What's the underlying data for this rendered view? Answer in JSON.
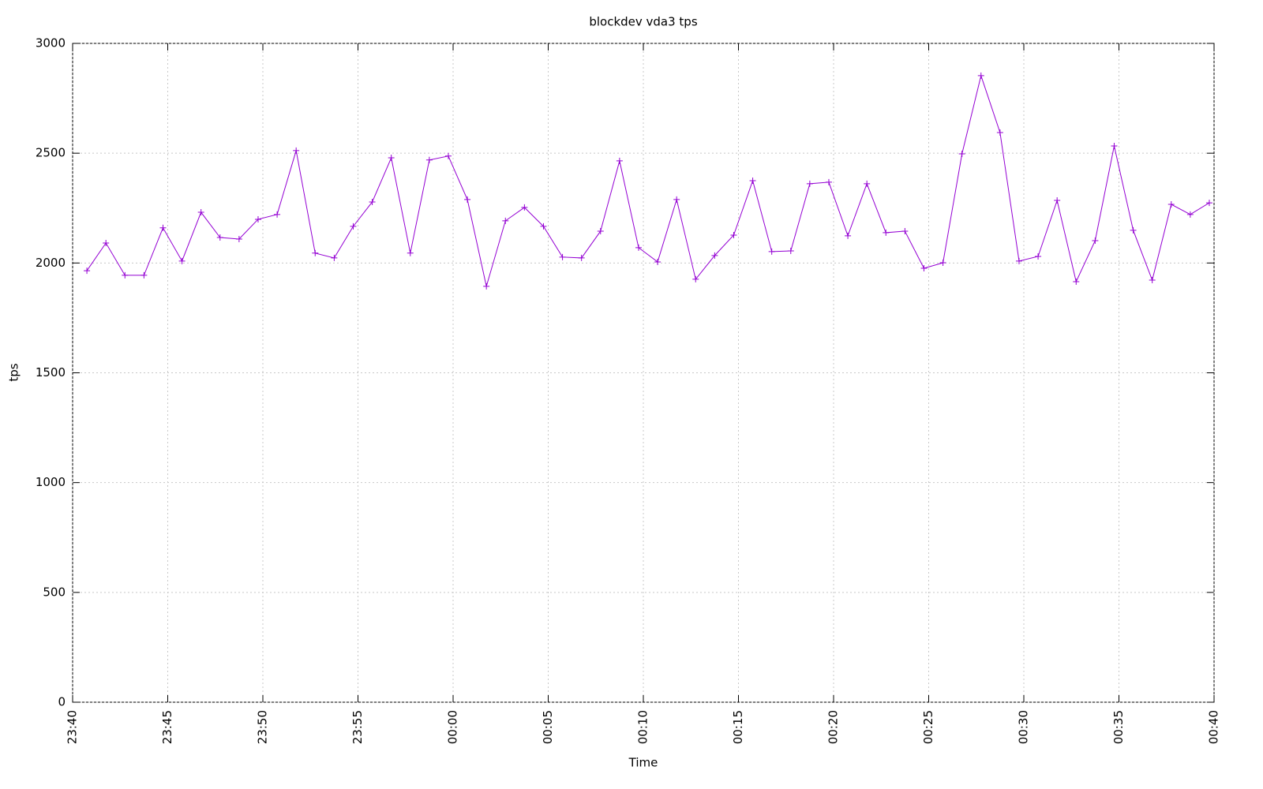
{
  "chart_data": {
    "type": "line",
    "title": "blockdev vda3 tps",
    "x_label": "Time",
    "y_label": "tps",
    "x": [
      0.75,
      1.75,
      2.75,
      3.75,
      4.75,
      5.75,
      6.75,
      7.75,
      8.75,
      9.75,
      10.75,
      11.75,
      12.75,
      13.75,
      14.75,
      15.75,
      16.75,
      17.75,
      18.75,
      19.75,
      20.75,
      21.75,
      22.75,
      23.75,
      24.75,
      25.75,
      26.75,
      27.75,
      28.75,
      29.75,
      30.75,
      31.75,
      32.75,
      33.75,
      34.75,
      35.75,
      36.75,
      37.75,
      38.75,
      39.75,
      40.75,
      41.75,
      42.75,
      43.75,
      44.75,
      45.75,
      46.75,
      47.75,
      48.75,
      49.75,
      50.75,
      51.75,
      52.75,
      53.75,
      54.75,
      55.75,
      56.75,
      57.75,
      58.75,
      59.75
    ],
    "values": [
      1965,
      2091,
      1944,
      1944,
      2160,
      2009,
      2231,
      2116,
      2109,
      2199,
      2221,
      2512,
      2045,
      2023,
      2167,
      2278,
      2479,
      2045,
      2469,
      2487,
      2289,
      1894,
      2192,
      2253,
      2167,
      2027,
      2023,
      2145,
      2465,
      2070,
      2005,
      2289,
      1926,
      2034,
      2127,
      2375,
      2052,
      2055,
      2361,
      2368,
      2124,
      2361,
      2138,
      2145,
      1976,
      2001,
      2497,
      2853,
      2594,
      2009,
      2030,
      2285,
      1915,
      2102,
      2533,
      2149,
      1922,
      2267,
      2221,
      2274
    ],
    "color": "#9400d3",
    "xlim": [
      0,
      60
    ],
    "xticks": [
      {
        "value": 0,
        "label": "23:40"
      },
      {
        "value": 5,
        "label": "23:45"
      },
      {
        "value": 10,
        "label": "23:50"
      },
      {
        "value": 15,
        "label": "23:55"
      },
      {
        "value": 20,
        "label": "00:00"
      },
      {
        "value": 25,
        "label": "00:05"
      },
      {
        "value": 30,
        "label": "00:10"
      },
      {
        "value": 35,
        "label": "00:15"
      },
      {
        "value": 40,
        "label": "00:20"
      },
      {
        "value": 45,
        "label": "00:25"
      },
      {
        "value": 50,
        "label": "00:30"
      },
      {
        "value": 55,
        "label": "00:35"
      },
      {
        "value": 60,
        "label": "00:40"
      }
    ],
    "ylim": [
      0,
      3000
    ],
    "yticks": [
      0,
      500,
      1000,
      1500,
      2000,
      2500,
      3000
    ],
    "grid": true
  }
}
